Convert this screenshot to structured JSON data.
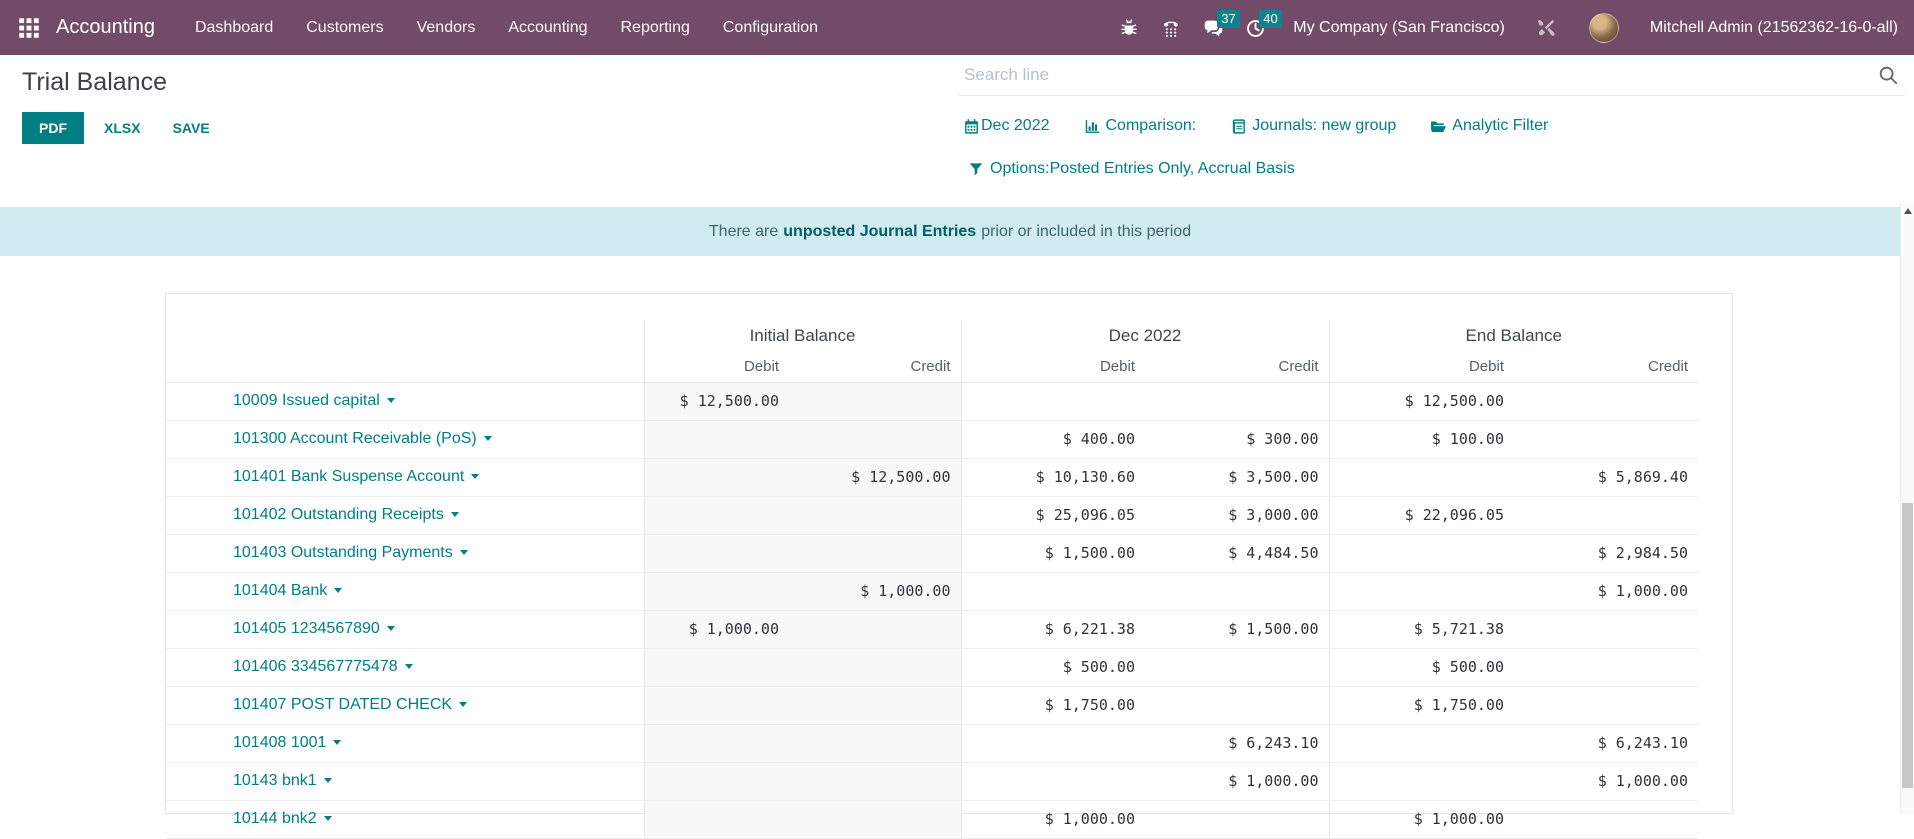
{
  "nav": {
    "app_name": "Accounting",
    "menus": [
      "Dashboard",
      "Customers",
      "Vendors",
      "Accounting",
      "Reporting",
      "Configuration"
    ],
    "icons": [
      "apps-grid-icon",
      "bug-icon",
      "support-phone-icon",
      "messages-icon",
      "activities-icon",
      "tools-icon"
    ],
    "messages_badge": "37",
    "activities_badge": "40",
    "company": "My Company (San Francisco)",
    "user": "Mitchell Admin (21562362-16-0-all)"
  },
  "control_panel": {
    "title": "Trial Balance",
    "buttons": {
      "pdf": "PDF",
      "xlsx": "XLSX",
      "save": "SAVE"
    },
    "search_placeholder": "Search line",
    "filters": [
      {
        "icon": "calendar-icon",
        "label": "Dec 2022"
      },
      {
        "icon": "bar-chart-icon",
        "label": "Comparison:"
      },
      {
        "icon": "journal-book-icon",
        "label": "Journals: new group"
      },
      {
        "icon": "folder-open-icon",
        "label": "Analytic Filter"
      }
    ],
    "options_filter": "Options:Posted Entries Only, Accrual Basis"
  },
  "banner": {
    "prefix": "There are",
    "link": "unposted Journal Entries",
    "suffix": "prior or included in this period"
  },
  "report": {
    "column_groups": [
      "Initial Balance",
      "Dec 2022",
      "End Balance"
    ],
    "sub_columns": [
      "Debit",
      "Credit"
    ],
    "rows": [
      {
        "name": "10009 Issued capital",
        "cells": [
          "$ 12,500.00",
          "",
          "",
          "",
          "$ 12,500.00",
          ""
        ]
      },
      {
        "name": "101300 Account Receivable (PoS)",
        "cells": [
          "",
          "",
          "$ 400.00",
          "$ 300.00",
          "$ 100.00",
          ""
        ]
      },
      {
        "name": "101401 Bank Suspense Account",
        "cells": [
          "",
          "$ 12,500.00",
          "$ 10,130.60",
          "$ 3,500.00",
          "",
          "$ 5,869.40"
        ]
      },
      {
        "name": "101402 Outstanding Receipts",
        "cells": [
          "",
          "",
          "$ 25,096.05",
          "$ 3,000.00",
          "$ 22,096.05",
          ""
        ]
      },
      {
        "name": "101403 Outstanding Payments",
        "cells": [
          "",
          "",
          "$ 1,500.00",
          "$ 4,484.50",
          "",
          "$ 2,984.50"
        ]
      },
      {
        "name": "101404 Bank",
        "cells": [
          "",
          "$ 1,000.00",
          "",
          "",
          "",
          "$ 1,000.00"
        ]
      },
      {
        "name": "101405 1234567890",
        "cells": [
          "$ 1,000.00",
          "",
          "$ 6,221.38",
          "$ 1,500.00",
          "$ 5,721.38",
          ""
        ]
      },
      {
        "name": "101406 334567775478",
        "cells": [
          "",
          "",
          "$ 500.00",
          "",
          "$ 500.00",
          ""
        ]
      },
      {
        "name": "101407 POST DATED CHECK",
        "cells": [
          "",
          "",
          "$ 1,750.00",
          "",
          "$ 1,750.00",
          ""
        ]
      },
      {
        "name": "101408 1001",
        "cells": [
          "",
          "",
          "",
          "$ 6,243.10",
          "",
          "$ 6,243.10"
        ]
      },
      {
        "name": "10143 bnk1",
        "cells": [
          "",
          "",
          "",
          "$ 1,000.00",
          "",
          "$ 1,000.00"
        ]
      },
      {
        "name": "10144 bnk2",
        "cells": [
          "",
          "",
          "$ 1,000.00",
          "",
          "$ 1,000.00",
          ""
        ]
      }
    ]
  },
  "colors": {
    "nav_bg": "#714B67",
    "accent_teal": "#017e84",
    "badge_bg": "#0e8390",
    "banner_bg": "#d1ecf1",
    "shaded_column": "#f8f8f9"
  }
}
